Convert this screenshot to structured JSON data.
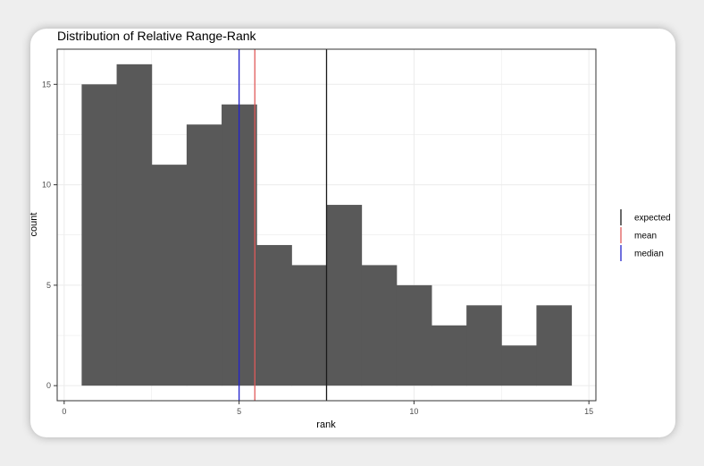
{
  "chart_data": {
    "type": "bar",
    "title": "Distribution of Relative Range-Rank",
    "xlabel": "rank",
    "ylabel": "count",
    "xlim": [
      -0.2,
      15.2
    ],
    "ylim": [
      -0.75,
      16.75
    ],
    "x_ticks": [
      0,
      5,
      10,
      15
    ],
    "y_ticks": [
      0,
      5,
      10,
      15
    ],
    "grid": true,
    "bin_width": 1,
    "bins": [
      {
        "x": 1,
        "count": 15
      },
      {
        "x": 2,
        "count": 16
      },
      {
        "x": 3,
        "count": 11
      },
      {
        "x": 4,
        "count": 13
      },
      {
        "x": 5,
        "count": 14
      },
      {
        "x": 6,
        "count": 7
      },
      {
        "x": 7,
        "count": 6
      },
      {
        "x": 8,
        "count": 9
      },
      {
        "x": 9,
        "count": 6
      },
      {
        "x": 10,
        "count": 5
      },
      {
        "x": 11,
        "count": 3
      },
      {
        "x": 12,
        "count": 4
      },
      {
        "x": 13,
        "count": 2
      },
      {
        "x": 14,
        "count": 4
      }
    ],
    "bar_color": "#595959",
    "vlines": [
      {
        "name": "expected",
        "x": 7.5,
        "color": "#1a1a1a"
      },
      {
        "name": "mean",
        "x": 5.45,
        "color": "#e05a5a"
      },
      {
        "name": "median",
        "x": 5.0,
        "color": "#2222cc"
      }
    ],
    "legend": {
      "placement": "right",
      "entries": [
        {
          "label": "expected",
          "color": "#1a1a1a"
        },
        {
          "label": "mean",
          "color": "#e05a5a"
        },
        {
          "label": "median",
          "color": "#2222cc"
        }
      ]
    }
  }
}
